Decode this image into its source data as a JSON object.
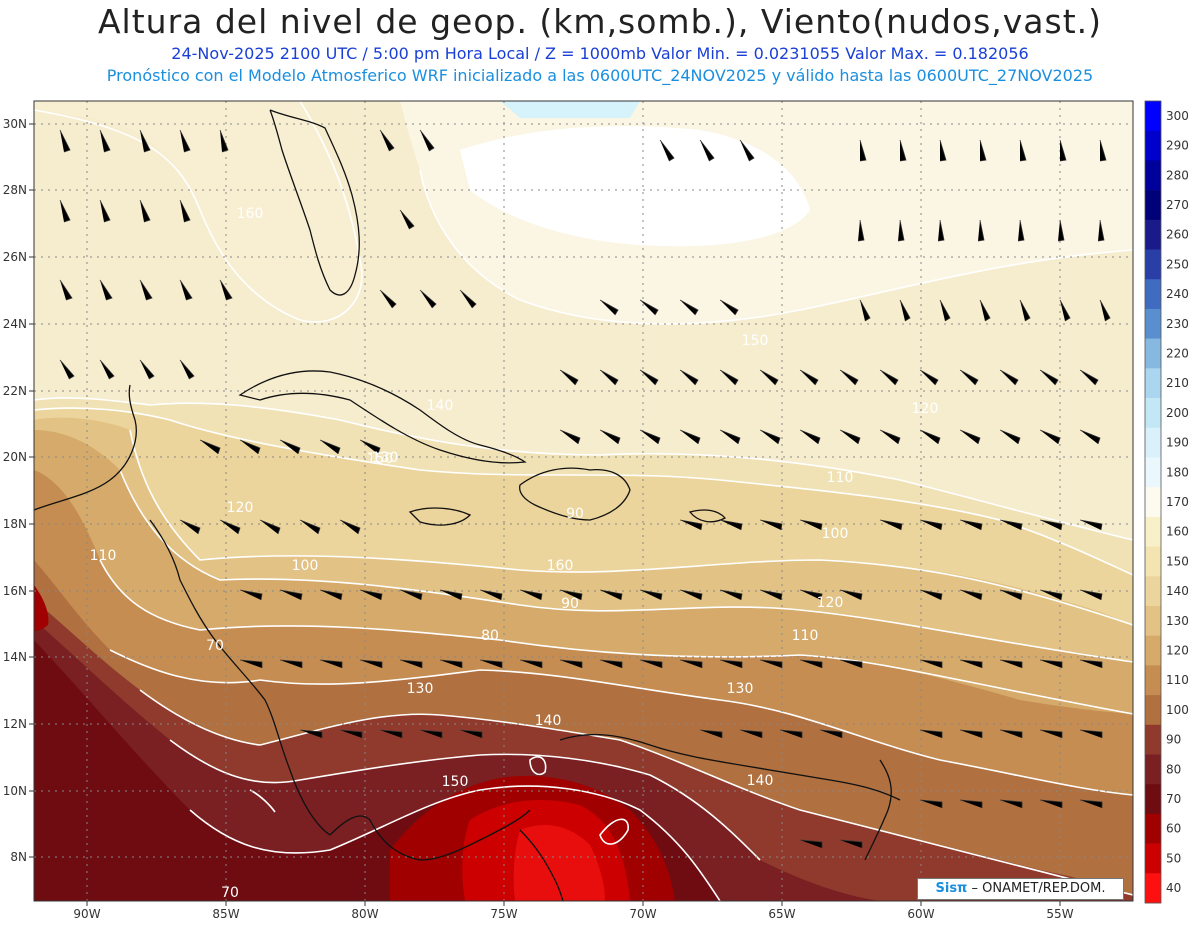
{
  "title": "Altura del nivel de geop. (km,somb.), Viento(nudos,vast.)",
  "subtitle_line1": "24-Nov-2025  2100 UTC / 5:00 pm Hora Local / Z = 1000mb  Valor Min. = 0.0231055   Valor Max. = 0.182056",
  "subtitle_line2": "Pronóstico con el Modelo Atmosferico WRF inicializado a las 0600UTC_24NOV2025 y válido hasta las  0600UTC_27NOV2025",
  "credit": {
    "brand": "Sisπ",
    "text": " – ONAMET/REP.DOM."
  },
  "map": {
    "lon_ticks": [
      "90W",
      "85W",
      "80W",
      "75W",
      "70W",
      "65W",
      "60W",
      "55W"
    ],
    "lat_ticks": [
      "30N",
      "28N",
      "26N",
      "24N",
      "22N",
      "20N",
      "18N",
      "16N",
      "14N",
      "12N",
      "10N",
      "8N"
    ]
  },
  "colorbar": {
    "labels": [
      "300",
      "290",
      "280",
      "270",
      "260",
      "250",
      "240",
      "230",
      "220",
      "210",
      "200",
      "190",
      "180",
      "170",
      "160",
      "150",
      "140",
      "130",
      "120",
      "110",
      "100",
      "90",
      "80",
      "70",
      "60",
      "50",
      "40"
    ],
    "colors": [
      "#0000ff",
      "#0000cd",
      "#00009a",
      "#000078",
      "#1a1a8a",
      "#2a3ea8",
      "#3f6bc0",
      "#5a8fcf",
      "#86b8e0",
      "#aad6ef",
      "#c4e7f6",
      "#daf0fb",
      "#eaf7fd",
      "#fdfbf0",
      "#f8f0c8",
      "#f3e4b2",
      "#ecd59c",
      "#e2c285",
      "#d5aa6a",
      "#c58d52",
      "#b07040",
      "#8f3a2c",
      "#7a1f22",
      "#6e0c12",
      "#a00000",
      "#cc0000",
      "#ff1010"
    ]
  },
  "contour_labels": [
    "160",
    "150",
    "140",
    "130",
    "120",
    "110",
    "100",
    "90",
    "80",
    "70",
    "130",
    "140",
    "150",
    "120",
    "110",
    "100",
    "90",
    "110",
    "120",
    "130",
    "140",
    "150",
    "160",
    "70"
  ]
}
